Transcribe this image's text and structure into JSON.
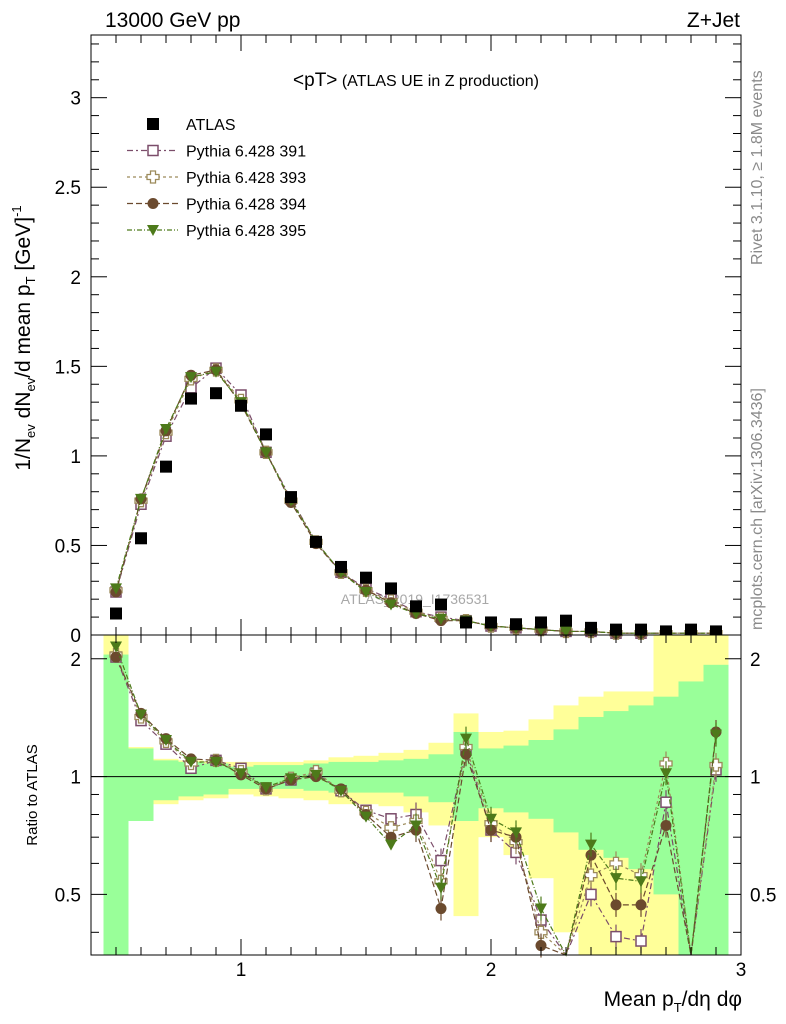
{
  "header": {
    "left": "13000 GeV pp",
    "right": "Z+Jet"
  },
  "side_labels": {
    "rivet": "Rivet 3.1.10, ≥ 1.8M events",
    "mcplots": "mcplots.cern.ch [arXiv:1306.3436]"
  },
  "main_plot": {
    "title_main": "<pT>",
    "title_sub": " (ATLAS UE in Z production)",
    "ylabel_parts": [
      "1/N",
      "ev",
      " dN",
      "ev",
      "/d mean p",
      "T",
      " [GeV]",
      "-1"
    ],
    "watermark": "ATLAS_2019_I1736531",
    "ytick_labels": [
      "0",
      "0.5",
      "1",
      "1.5",
      "2",
      "2.5",
      "3"
    ]
  },
  "ratio_plot": {
    "ylabel": "Ratio to ATLAS",
    "ytick_labels": [
      "0.5",
      "1",
      "2"
    ],
    "xtick_labels": [
      "1",
      "2",
      "3"
    ],
    "xlabel_parts": [
      "Mean p",
      "T",
      "/dη dφ"
    ]
  },
  "legend": [
    {
      "name": "ATLAS",
      "color": "#000000",
      "marker": "square-filled"
    },
    {
      "name": "Pythia 6.428 391",
      "color": "#7b4d6a",
      "marker": "square-open"
    },
    {
      "name": "Pythia 6.428 393",
      "color": "#9c8a5a",
      "marker": "cross-open"
    },
    {
      "name": "Pythia 6.428 394",
      "color": "#6b4a2e",
      "marker": "circle-filled"
    },
    {
      "name": "Pythia 6.428 395",
      "color": "#4d7a1a",
      "marker": "triangle-down-filled"
    }
  ],
  "chart_data": {
    "type": "scatter",
    "xlim": [
      0.4,
      3.0
    ],
    "ylim": [
      0,
      3.35
    ],
    "ratio_ylim": [
      0.35,
      2.3
    ],
    "ratio_scale": "log",
    "x": [
      0.5,
      0.6,
      0.7,
      0.8,
      0.9,
      1.0,
      1.1,
      1.2,
      1.3,
      1.4,
      1.5,
      1.6,
      1.7,
      1.8,
      1.9,
      2.0,
      2.1,
      2.2,
      2.3,
      2.4,
      2.5,
      2.6,
      2.7,
      2.8,
      2.9
    ],
    "series": [
      {
        "name": "ATLAS",
        "values": [
          0.12,
          0.54,
          0.94,
          1.32,
          1.35,
          1.28,
          1.12,
          0.77,
          0.52,
          0.38,
          0.32,
          0.26,
          0.16,
          0.17,
          0.07,
          0.07,
          0.06,
          0.07,
          0.08,
          0.04,
          0.03,
          0.03,
          0.02,
          0.03,
          0.02
        ]
      },
      {
        "name": "Pythia 6.428 391",
        "values": [
          0.24,
          0.73,
          1.11,
          1.38,
          1.49,
          1.34,
          1.02,
          0.76,
          0.52,
          0.35,
          0.26,
          0.2,
          0.13,
          0.1,
          0.08,
          0.05,
          0.04,
          0.03,
          0.02,
          0.02,
          0.01,
          0.01,
          0.01,
          0.01,
          0.01
        ]
      },
      {
        "name": "Pythia 6.428 393",
        "values": [
          0.25,
          0.75,
          1.13,
          1.43,
          1.48,
          1.31,
          1.02,
          0.75,
          0.52,
          0.35,
          0.25,
          0.19,
          0.13,
          0.09,
          0.08,
          0.05,
          0.04,
          0.03,
          0.02,
          0.02,
          0.01,
          0.01,
          0.01,
          0.01,
          0.01
        ]
      },
      {
        "name": "Pythia 6.428 394",
        "values": [
          0.24,
          0.76,
          1.14,
          1.45,
          1.48,
          1.29,
          1.02,
          0.74,
          0.51,
          0.35,
          0.25,
          0.18,
          0.12,
          0.08,
          0.08,
          0.05,
          0.04,
          0.03,
          0.02,
          0.02,
          0.01,
          0.01,
          0.01,
          0.01,
          0.01
        ]
      },
      {
        "name": "Pythia 6.428 395",
        "values": [
          0.26,
          0.76,
          1.15,
          1.44,
          1.47,
          1.3,
          1.02,
          0.75,
          0.52,
          0.35,
          0.24,
          0.17,
          0.12,
          0.09,
          0.08,
          0.05,
          0.04,
          0.03,
          0.02,
          0.02,
          0.01,
          0.01,
          0.01,
          0.01,
          0.01
        ]
      }
    ],
    "ratio_series": [
      {
        "name": "Pythia 6.428 391",
        "values": [
          2.02,
          1.39,
          1.21,
          1.05,
          1.1,
          1.05,
          0.93,
          0.98,
          1.02,
          0.92,
          0.82,
          0.78,
          0.8,
          0.61,
          1.17,
          0.73,
          0.64,
          0.43,
          0.25,
          0.5,
          0.39,
          0.38,
          0.86,
          0.2,
          1.04
        ]
      },
      {
        "name": "Pythia 6.428 393",
        "values": [
          2.05,
          1.42,
          1.23,
          1.08,
          1.1,
          1.03,
          0.93,
          0.99,
          1.03,
          0.92,
          0.81,
          0.74,
          0.77,
          0.54,
          1.19,
          0.76,
          0.68,
          0.4,
          0.25,
          0.56,
          0.6,
          0.56,
          1.08,
          0.22,
          1.07
        ]
      },
      {
        "name": "Pythia 6.428 394",
        "values": [
          2.02,
          1.45,
          1.25,
          1.11,
          1.1,
          1.01,
          0.93,
          0.98,
          1.0,
          0.93,
          0.8,
          0.7,
          0.73,
          0.46,
          1.14,
          0.73,
          0.7,
          0.37,
          0.25,
          0.63,
          0.47,
          0.47,
          0.75,
          0.22,
          1.3
        ]
      },
      {
        "name": "Pythia 6.428 395",
        "values": [
          2.15,
          1.44,
          1.24,
          1.09,
          1.09,
          1.02,
          0.94,
          0.99,
          1.01,
          0.92,
          0.79,
          0.67,
          0.75,
          0.52,
          1.25,
          0.78,
          0.72,
          0.46,
          0.25,
          0.67,
          0.55,
          0.54,
          1.02,
          0.22,
          1.28
        ]
      }
    ],
    "band_inner": [
      [
        0.3,
        2.05
      ],
      [
        0.77,
        1.18
      ],
      [
        0.87,
        1.1
      ],
      [
        0.89,
        1.09
      ],
      [
        0.9,
        1.08
      ],
      [
        0.93,
        1.06
      ],
      [
        0.93,
        1.07
      ],
      [
        0.93,
        1.07
      ],
      [
        0.92,
        1.08
      ],
      [
        0.91,
        1.09
      ],
      [
        0.91,
        1.09
      ],
      [
        0.91,
        1.1
      ],
      [
        0.89,
        1.11
      ],
      [
        0.86,
        1.14
      ],
      [
        0.77,
        1.3
      ],
      [
        0.83,
        1.18
      ],
      [
        0.81,
        1.2
      ],
      [
        0.78,
        1.24
      ],
      [
        0.72,
        1.32
      ],
      [
        0.65,
        1.42
      ],
      [
        0.62,
        1.47
      ],
      [
        0.58,
        1.52
      ],
      [
        0.5,
        1.6
      ],
      [
        0.3,
        1.75
      ],
      [
        0.3,
        1.93
      ]
    ],
    "band_outer": [
      [
        0.3,
        2.5
      ],
      [
        0.79,
        1.19
      ],
      [
        0.85,
        1.11
      ],
      [
        0.87,
        1.1
      ],
      [
        0.88,
        1.09
      ],
      [
        0.9,
        1.09
      ],
      [
        0.89,
        1.09
      ],
      [
        0.88,
        1.09
      ],
      [
        0.87,
        1.1
      ],
      [
        0.85,
        1.12
      ],
      [
        0.85,
        1.13
      ],
      [
        0.84,
        1.15
      ],
      [
        0.81,
        1.17
      ],
      [
        0.75,
        1.22
      ],
      [
        0.44,
        1.45
      ],
      [
        0.7,
        1.3
      ],
      [
        0.63,
        1.31
      ],
      [
        0.55,
        1.4
      ],
      [
        0.4,
        1.52
      ],
      [
        0.3,
        1.6
      ],
      [
        0.3,
        1.65
      ],
      [
        0.3,
        1.65
      ],
      [
        0.3,
        2.3
      ],
      [
        0.3,
        2.3
      ],
      [
        0.3,
        2.5
      ]
    ]
  }
}
